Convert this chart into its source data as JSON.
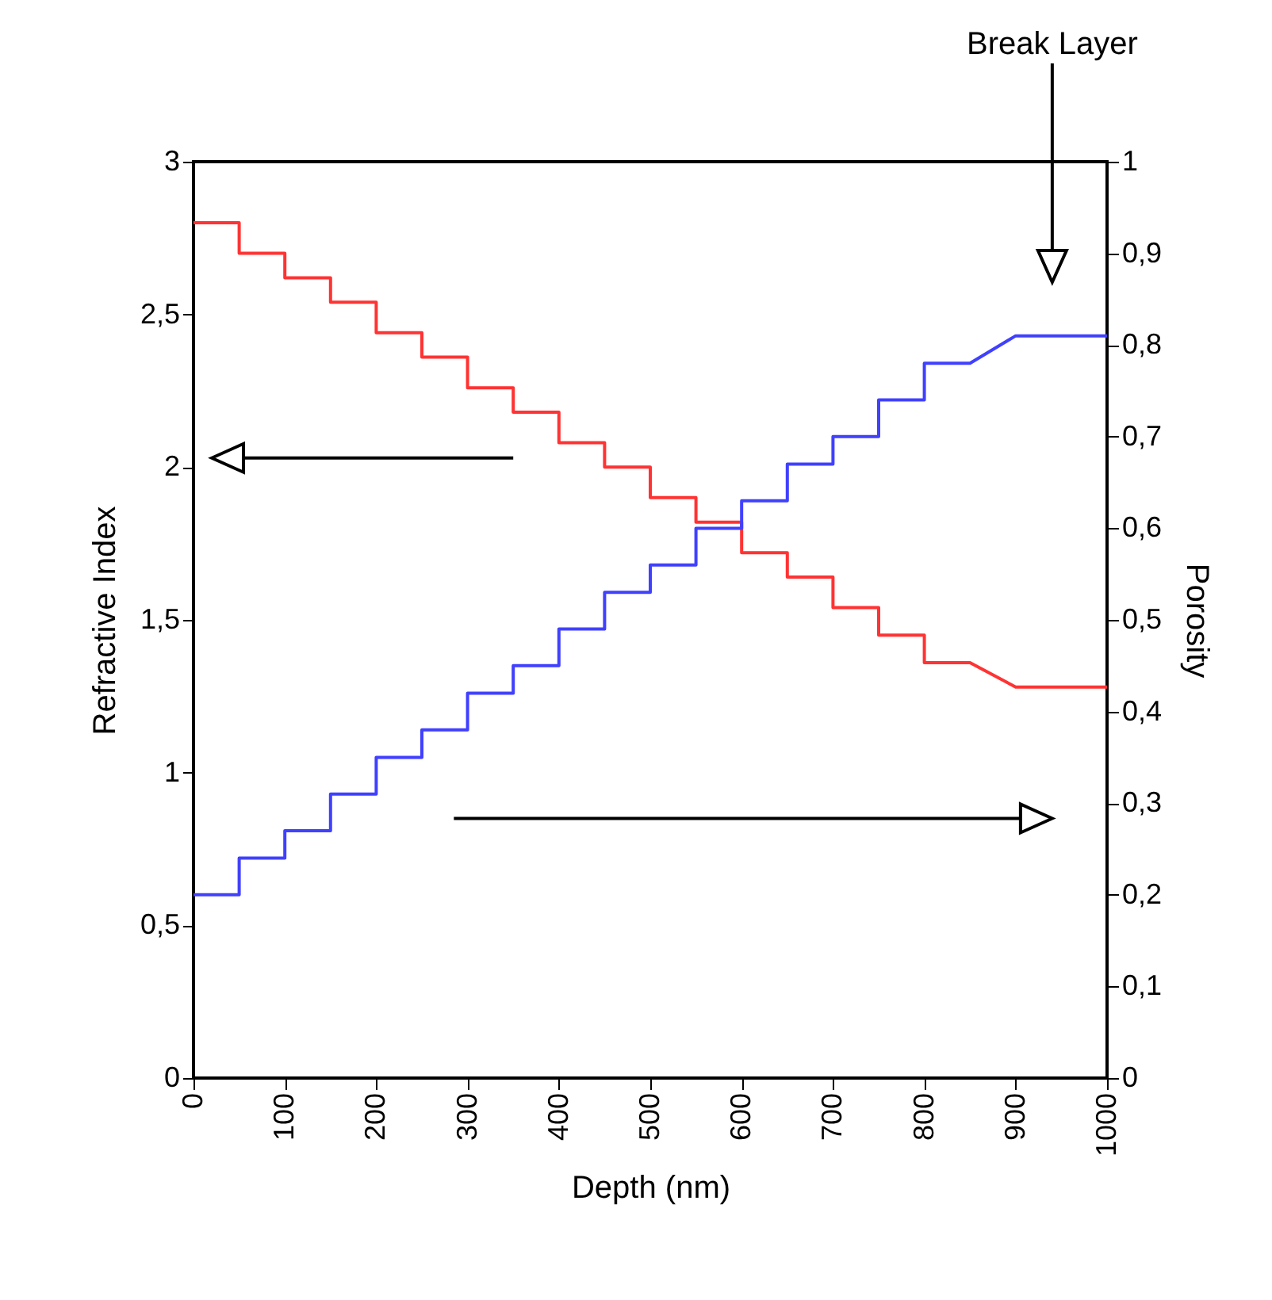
{
  "chart_data": {
    "type": "line",
    "xlabel": "Depth (nm)",
    "ylabel": "Refractive Index",
    "y2label": "Porosity",
    "xlim": [
      0,
      1000
    ],
    "xticks": [
      0,
      100,
      200,
      300,
      400,
      500,
      600,
      700,
      800,
      900,
      1000
    ],
    "ylim": [
      0,
      3
    ],
    "yticks": [
      0,
      {
        "value": 0.5,
        "label": "0,5"
      },
      1,
      {
        "value": 1.5,
        "label": "1,5"
      },
      2,
      {
        "value": 2.5,
        "label": "2,5"
      },
      3
    ],
    "y2lim": [
      0,
      1
    ],
    "y2ticks": [
      0,
      {
        "value": 0.1,
        "label": "0,1"
      },
      {
        "value": 0.2,
        "label": "0,2"
      },
      {
        "value": 0.3,
        "label": "0,3"
      },
      {
        "value": 0.4,
        "label": "0,4"
      },
      {
        "value": 0.5,
        "label": "0,5"
      },
      {
        "value": 0.6,
        "label": "0,6"
      },
      {
        "value": 0.7,
        "label": "0,7"
      },
      {
        "value": 0.8,
        "label": "0,8"
      },
      {
        "value": 0.9,
        "label": "0,9"
      },
      1
    ],
    "grid": false,
    "line_style": "solid",
    "marker": "none",
    "annotations": [
      "Break Layer"
    ],
    "series": [
      {
        "color": "#ff3333",
        "x": [
          0,
          50,
          50,
          100,
          100,
          150,
          150,
          200,
          200,
          250,
          250,
          300,
          300,
          350,
          350,
          400,
          400,
          450,
          450,
          500,
          500,
          550,
          550,
          600,
          600,
          650,
          650,
          700,
          700,
          750,
          750,
          800,
          800,
          850,
          900,
          1000
        ],
        "values": [
          2.8,
          2.8,
          2.7,
          2.7,
          2.62,
          2.62,
          2.54,
          2.54,
          2.44,
          2.44,
          2.36,
          2.36,
          2.26,
          2.26,
          2.18,
          2.18,
          2.08,
          2.08,
          2.0,
          2.0,
          1.9,
          1.9,
          1.82,
          1.82,
          1.72,
          1.72,
          1.64,
          1.64,
          1.54,
          1.54,
          1.45,
          1.45,
          1.36,
          1.36,
          1.28,
          1.28
        ]
      },
      {
        "color": "#4040ff",
        "axis": "y2",
        "x": [
          0,
          50,
          50,
          100,
          100,
          150,
          150,
          200,
          200,
          250,
          250,
          300,
          300,
          350,
          350,
          400,
          400,
          450,
          450,
          500,
          500,
          550,
          550,
          600,
          600,
          650,
          650,
          700,
          700,
          750,
          750,
          800,
          800,
          850,
          900,
          1000
        ],
        "values": [
          0.2,
          0.2,
          0.24,
          0.24,
          0.27,
          0.27,
          0.31,
          0.31,
          0.35,
          0.35,
          0.38,
          0.38,
          0.42,
          0.42,
          0.45,
          0.45,
          0.49,
          0.49,
          0.53,
          0.53,
          0.56,
          0.56,
          0.6,
          0.6,
          0.63,
          0.63,
          0.67,
          0.67,
          0.7,
          0.7,
          0.74,
          0.74,
          0.78,
          0.78,
          0.81,
          0.81
        ]
      }
    ]
  }
}
